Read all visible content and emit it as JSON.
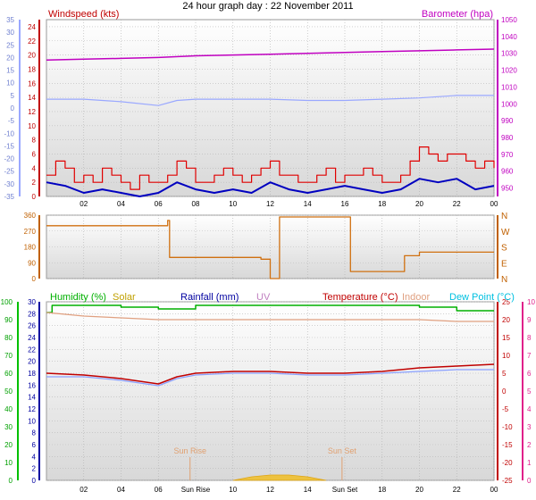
{
  "title": "24 hour graph day : 22 November 2011",
  "colors": {
    "wind": "#e00000",
    "gust": "#e00000",
    "windAvg": "#0000c0",
    "baro": "#c000c0",
    "windLight": "#9aa8ff",
    "dirLine": "#d07010",
    "humidity": "#00b000",
    "solar": "#c0a000",
    "rain": "#0000a0",
    "uv": "#c080c0",
    "temp": "#c00000",
    "indoor": "#e0a080",
    "dew": "#00c0e0",
    "bgTop": "#ffffff",
    "bgBottom": "#d8d8d8",
    "sunMarker": "#e0a070"
  },
  "chart_data": [
    {
      "type": "line",
      "title": "",
      "x_ticks": [
        "02",
        "04",
        "06",
        "08",
        "10",
        "12",
        "14",
        "16",
        "18",
        "20",
        "22",
        "00"
      ],
      "left_axis": {
        "label": "Windspeed (kts)",
        "range": [
          0,
          25
        ],
        "ticks": [
          "0",
          "2",
          "4",
          "6",
          "8",
          "10",
          "12",
          "14",
          "16",
          "18",
          "20",
          "22",
          "24"
        ]
      },
      "outer_left_axis": {
        "label": "",
        "range": [
          -35,
          35
        ],
        "ticks": [
          "-35",
          "-30",
          "-25",
          "-20",
          "-15",
          "-10",
          "-5",
          "0",
          "5",
          "10",
          "15",
          "20",
          "25",
          "30",
          "35"
        ]
      },
      "right_axis": {
        "label": "Barometer (hpa)",
        "range": [
          945,
          1050
        ],
        "ticks": [
          "950",
          "960",
          "970",
          "980",
          "990",
          "1000",
          "1010",
          "1020",
          "1030",
          "1040",
          "1050"
        ]
      },
      "series": [
        {
          "name": "Barometer (hpa)",
          "axis": "right",
          "x": [
            0,
            2,
            4,
            6,
            8,
            10,
            12,
            14,
            16,
            18,
            20,
            22,
            24
          ],
          "values": [
            1026,
            1026.5,
            1027,
            1027.5,
            1028.5,
            1029,
            1029.5,
            1030,
            1030.5,
            1031,
            1031.5,
            1032,
            1032.5
          ]
        },
        {
          "name": "Windspeed gust",
          "axis": "left",
          "x": [
            0,
            0.5,
            1,
            1.5,
            2,
            2.5,
            3,
            3.5,
            4,
            4.5,
            5,
            5.5,
            6,
            6.5,
            7,
            7.5,
            8,
            8.5,
            9,
            9.5,
            10,
            10.5,
            11,
            11.5,
            12,
            12.5,
            13,
            13.5,
            14,
            14.5,
            15,
            15.5,
            16,
            16.5,
            17,
            17.5,
            18,
            18.5,
            19,
            19.5,
            20,
            20.5,
            21,
            21.5,
            22,
            22.5,
            23,
            23.5,
            24
          ],
          "values": [
            3,
            5,
            4,
            2,
            3,
            2,
            4,
            3,
            2,
            1,
            3,
            2,
            2,
            3,
            5,
            4,
            2,
            2,
            3,
            4,
            3,
            2,
            3,
            4,
            5,
            3,
            3,
            2,
            2,
            3,
            4,
            2,
            3,
            3,
            4,
            3,
            2,
            2,
            3,
            5,
            7,
            6,
            5,
            6,
            6,
            5,
            4,
            5,
            4
          ]
        },
        {
          "name": "Windspeed average",
          "axis": "left",
          "x": [
            0,
            1,
            2,
            3,
            4,
            5,
            6,
            7,
            8,
            9,
            10,
            11,
            12,
            13,
            14,
            15,
            16,
            17,
            18,
            19,
            20,
            21,
            22,
            23,
            24
          ],
          "values": [
            2,
            1.5,
            0.5,
            1,
            0.5,
            0,
            0.5,
            2,
            1,
            0.5,
            1,
            0.5,
            2,
            1,
            0.5,
            1,
            1.5,
            1,
            0.5,
            1,
            2.5,
            2,
            2.5,
            1,
            1.5
          ]
        },
        {
          "name": "Windspeed light",
          "axis": "outer_left",
          "x": [
            0,
            2,
            4,
            6,
            7,
            8,
            10,
            12,
            14,
            16,
            18,
            20,
            22,
            24
          ],
          "values": [
            3.5,
            3.5,
            2.5,
            1,
            3,
            3.5,
            3.5,
            3.5,
            3,
            3,
            3.5,
            4,
            5,
            5
          ]
        }
      ]
    },
    {
      "type": "line",
      "title": "",
      "left_axis": {
        "label": "",
        "range": [
          0,
          360
        ],
        "ticks": [
          "0",
          "90",
          "180",
          "270",
          "360"
        ]
      },
      "right_axis": {
        "label": "",
        "range": [
          0,
          360
        ],
        "ticks": [
          "N",
          "E",
          "S",
          "W",
          "N"
        ]
      },
      "series": [
        {
          "name": "Wind direction",
          "x": [
            0,
            6.5,
            6.6,
            9,
            11,
            11.5,
            12,
            12.5,
            16,
            16.3,
            18,
            19,
            19.2,
            20,
            22,
            24
          ],
          "values": [
            300,
            330,
            120,
            120,
            120,
            110,
            0,
            350,
            350,
            40,
            40,
            40,
            130,
            150,
            150,
            150
          ]
        }
      ]
    },
    {
      "type": "line",
      "title": "",
      "legend": [
        "Humidity (%)",
        "Solar",
        "Rainfall (mm)",
        "UV",
        "Temperature (°C)",
        "Indoor",
        "Dew Point (°C)"
      ],
      "left_axis": {
        "label": "",
        "range": [
          0,
          100
        ],
        "ticks": [
          "0",
          "10",
          "20",
          "30",
          "40",
          "50",
          "60",
          "70",
          "80",
          "90",
          "100"
        ]
      },
      "left_axis_2": {
        "label": "",
        "range": [
          0,
          30
        ],
        "ticks": [
          "0",
          "2",
          "4",
          "6",
          "8",
          "10",
          "12",
          "14",
          "16",
          "18",
          "20",
          "22",
          "24",
          "26",
          "28",
          "30"
        ]
      },
      "right_axis": {
        "label": "",
        "range": [
          -25,
          25
        ],
        "ticks": [
          "-25",
          "-20",
          "-15",
          "-10",
          "-5",
          "0",
          "5",
          "10",
          "15",
          "20",
          "25"
        ]
      },
      "right_axis_2": {
        "label": "",
        "range": [
          0,
          10
        ],
        "ticks": [
          "0",
          "1",
          "2",
          "3",
          "4",
          "5",
          "6",
          "7",
          "8",
          "9",
          "10"
        ]
      },
      "x_ticks": [
        "02",
        "04",
        "06",
        "Sun Rise",
        "10",
        "12",
        "14",
        "Sun Set",
        "18",
        "20",
        "22",
        "00"
      ],
      "annotations": [
        "Sun Rise",
        "Sun Set"
      ],
      "series": [
        {
          "name": "Humidity (%)",
          "axis": "left",
          "x": [
            0,
            0.3,
            2,
            4,
            6,
            8,
            10,
            12,
            14,
            16,
            18,
            20,
            22,
            24
          ],
          "values": [
            94,
            98,
            98,
            97,
            96,
            98,
            98,
            98,
            98,
            98,
            98,
            97,
            95,
            95
          ]
        },
        {
          "name": "Indoor",
          "axis": "right",
          "x": [
            0,
            2,
            4,
            6,
            8,
            10,
            12,
            14,
            16,
            18,
            20,
            22,
            24
          ],
          "values": [
            22,
            21,
            20.5,
            20,
            20,
            20,
            20,
            20,
            20,
            20,
            20,
            19.5,
            19.5
          ]
        },
        {
          "name": "Temperature (°C)",
          "axis": "right",
          "x": [
            0,
            2,
            4,
            6,
            7,
            8,
            10,
            12,
            14,
            16,
            18,
            20,
            22,
            24
          ],
          "values": [
            5,
            4.5,
            3.5,
            2,
            4,
            5,
            5.5,
            5.5,
            5,
            5,
            5.5,
            6.5,
            7,
            7.5
          ]
        },
        {
          "name": "Dew Point (°C)",
          "axis": "right",
          "x": [
            0,
            2,
            4,
            6,
            7,
            8,
            10,
            12,
            14,
            16,
            18,
            20,
            22,
            24
          ],
          "values": [
            4,
            4,
            3,
            1.5,
            3.5,
            4.5,
            5,
            5,
            4.5,
            4.5,
            5,
            5.5,
            6,
            6
          ]
        },
        {
          "name": "Solar",
          "axis": "left",
          "x": [
            10,
            11,
            12,
            13,
            14,
            15
          ],
          "values": [
            0,
            2,
            3,
            3,
            2,
            0
          ]
        }
      ]
    }
  ]
}
